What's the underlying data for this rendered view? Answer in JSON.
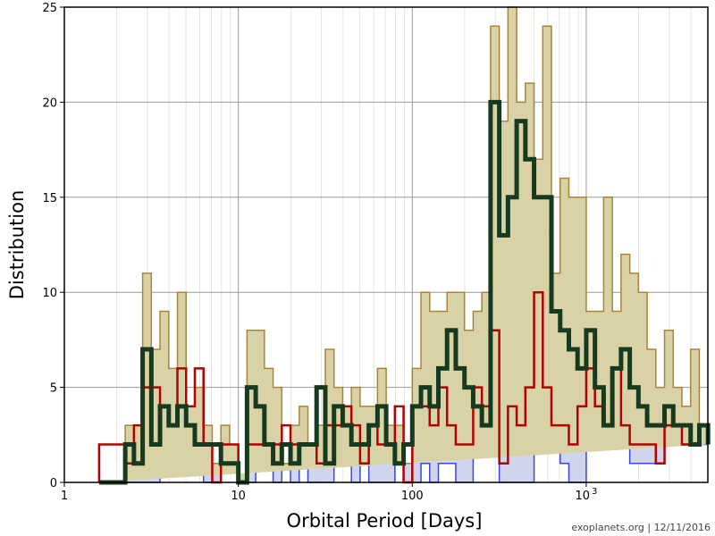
{
  "chart_data": {
    "type": "histogram",
    "title": "",
    "xlabel": "Orbital Period [Days]",
    "ylabel": "Distribution",
    "x_scale": "log",
    "xlim": [
      1,
      5000
    ],
    "ylim": [
      0,
      25
    ],
    "grid": true,
    "x_ticks": [
      {
        "value": 1,
        "label": "1",
        "power": ""
      },
      {
        "value": 10,
        "label": "10",
        "power": ""
      },
      {
        "value": 100,
        "label": "100",
        "power": ""
      },
      {
        "value": 1000,
        "label": "10",
        "power": "3"
      }
    ],
    "y_ticks": [
      0,
      5,
      10,
      15,
      20,
      25
    ],
    "bin_edges_log10": [
      0.2,
      0.25,
      0.3,
      0.35,
      0.4,
      0.45,
      0.5,
      0.55,
      0.6,
      0.65,
      0.7,
      0.75,
      0.8,
      0.85,
      0.9,
      0.95,
      1.0,
      1.05,
      1.1,
      1.15,
      1.2,
      1.25,
      1.3,
      1.35,
      1.4,
      1.45,
      1.5,
      1.55,
      1.6,
      1.65,
      1.7,
      1.75,
      1.8,
      1.85,
      1.9,
      1.95,
      2.0,
      2.05,
      2.1,
      2.15,
      2.2,
      2.25,
      2.3,
      2.35,
      2.4,
      2.45,
      2.5,
      2.55,
      2.6,
      2.65,
      2.7,
      2.75,
      2.8,
      2.85,
      2.9,
      2.95,
      3.0,
      3.05,
      3.1,
      3.15,
      3.2,
      3.25,
      3.3,
      3.35,
      3.4,
      3.45,
      3.5,
      3.55,
      3.6,
      3.65,
      3.7
    ],
    "series": [
      {
        "values": [
          0,
          0,
          0,
          0,
          0,
          0,
          0,
          1,
          1,
          1,
          1,
          2,
          0,
          0,
          1,
          1,
          0,
          0,
          1,
          1,
          0,
          1,
          0,
          1,
          0,
          0,
          0,
          1,
          1,
          0,
          1,
          0,
          0,
          0,
          1,
          0,
          0,
          1,
          0,
          1,
          1,
          0,
          0,
          2,
          2,
          2,
          0,
          0,
          0,
          0,
          2,
          2,
          2,
          1,
          0,
          0,
          2,
          2,
          4,
          3,
          2,
          1,
          1,
          1,
          1,
          2,
          3,
          3,
          2,
          2,
          2
        ],
        "fill": "#d0d4ec",
        "stroke": "#3a46e0",
        "stroke_width": 1.5
      },
      {
        "values": [
          0,
          0,
          0,
          3,
          3,
          11,
          7,
          9,
          6,
          10,
          4,
          5,
          3,
          1,
          3,
          2,
          0,
          8,
          8,
          6,
          5,
          1,
          3,
          4,
          2,
          3,
          7,
          5,
          4,
          5,
          4,
          4,
          6,
          3,
          3,
          1,
          6,
          10,
          9,
          9,
          10,
          10,
          8,
          9,
          10,
          24,
          19,
          25,
          20,
          21,
          17,
          24,
          11,
          16,
          15,
          15,
          9,
          9,
          15,
          9,
          12,
          11,
          10,
          7,
          5,
          8,
          5,
          4,
          7,
          3,
          2
        ],
        "fill": "#d8d2a6",
        "stroke": "#a8853c",
        "stroke_width": 1.5
      },
      {
        "values": [
          2,
          2,
          2,
          1,
          3,
          5,
          5,
          4,
          3,
          6,
          4,
          6,
          2,
          0,
          2,
          2,
          0,
          2,
          2,
          2,
          2,
          3,
          2,
          2,
          2,
          1,
          3,
          3,
          4,
          3,
          1,
          3,
          2,
          2,
          4,
          0,
          4,
          4,
          3,
          5,
          3,
          2,
          2,
          5,
          4,
          8,
          1,
          4,
          3,
          5,
          10,
          5,
          3,
          3,
          2,
          4,
          6,
          4,
          3,
          6,
          3,
          2,
          2,
          2,
          1,
          3,
          3,
          2,
          2,
          3,
          3
        ],
        "fill": "none",
        "stroke": "#b30000",
        "stroke_width": 2.5
      },
      {
        "values": [
          0,
          0,
          0,
          2,
          1,
          7,
          2,
          4,
          3,
          4,
          3,
          2,
          2,
          2,
          1,
          1,
          0,
          5,
          4,
          2,
          1,
          2,
          1,
          2,
          2,
          5,
          1,
          4,
          3,
          2,
          2,
          3,
          4,
          2,
          1,
          2,
          4,
          5,
          4,
          6,
          8,
          6,
          5,
          4,
          3,
          20,
          13,
          15,
          19,
          17,
          15,
          15,
          9,
          8,
          7,
          6,
          8,
          5,
          3,
          6,
          7,
          5,
          4,
          3,
          3,
          4,
          3,
          3,
          2,
          3,
          2
        ],
        "fill": "none",
        "stroke": "#173a1f",
        "stroke_width": 5
      }
    ]
  },
  "credit": "exoplanets.org | 12/11/2016"
}
